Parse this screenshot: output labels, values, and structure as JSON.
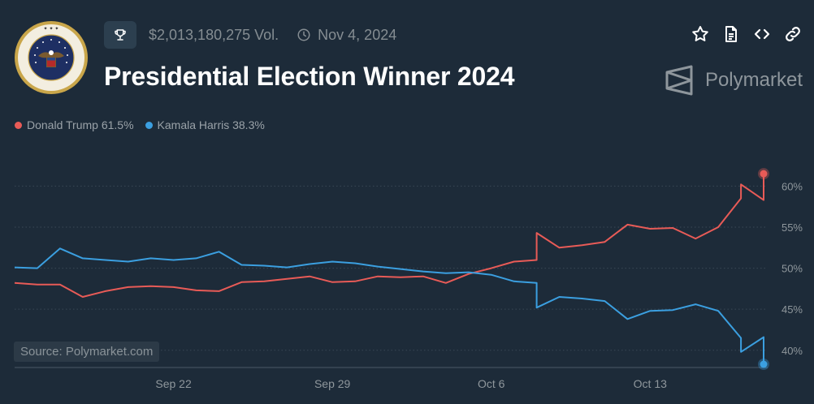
{
  "header": {
    "volume": "$2,013,180,275 Vol.",
    "date": "Nov 4, 2024",
    "title": "Presidential Election Winner 2024",
    "brand": "Polymarket"
  },
  "icons": {
    "trophy": "trophy-icon",
    "clock": "clock-icon",
    "actions": [
      "star-icon",
      "document-icon",
      "code-icon",
      "link-icon"
    ]
  },
  "legend": [
    {
      "label": "Donald Trump 61.5%",
      "color": "#e85b57"
    },
    {
      "label": "Kamala Harris 38.3%",
      "color": "#3b9fe0"
    }
  ],
  "source": "Source: Polymarket.com",
  "colors": {
    "background": "#1d2b39",
    "trump": "#e85b57",
    "harris": "#3b9fe0",
    "grid": "#3a4856",
    "muted": "#858d92"
  },
  "chart_data": {
    "type": "line",
    "x_ticks": [
      "Sep 22",
      "Sep 29",
      "Oct 6",
      "Oct 13"
    ],
    "y_ticks": [
      "40%",
      "45%",
      "50%",
      "55%",
      "60%"
    ],
    "ylim": [
      38.3,
      63
    ],
    "xlim": [
      "2024-09-15",
      "2024-10-18"
    ],
    "grid": "horizontal dotted",
    "legend_position": "top-left",
    "series": [
      {
        "name": "Donald Trump",
        "color": "#e85b57",
        "points": [
          [
            "2024-09-15",
            48.2
          ],
          [
            "2024-09-16",
            48.0
          ],
          [
            "2024-09-17",
            48.0
          ],
          [
            "2024-09-18",
            46.5
          ],
          [
            "2024-09-19",
            47.2
          ],
          [
            "2024-09-20",
            47.7
          ],
          [
            "2024-09-21",
            47.8
          ],
          [
            "2024-09-22",
            47.7
          ],
          [
            "2024-09-23",
            47.3
          ],
          [
            "2024-09-24",
            47.2
          ],
          [
            "2024-09-25",
            48.3
          ],
          [
            "2024-09-26",
            48.4
          ],
          [
            "2024-09-27",
            48.7
          ],
          [
            "2024-09-28",
            49.0
          ],
          [
            "2024-09-29",
            48.3
          ],
          [
            "2024-09-30",
            48.4
          ],
          [
            "2024-10-01",
            49.0
          ],
          [
            "2024-10-02",
            48.9
          ],
          [
            "2024-10-03",
            49.0
          ],
          [
            "2024-10-04",
            48.2
          ],
          [
            "2024-10-05",
            49.3
          ],
          [
            "2024-10-06",
            50.0
          ],
          [
            "2024-10-07",
            50.8
          ],
          [
            "2024-10-08",
            51.0
          ],
          [
            "2024-10-08",
            54.3
          ],
          [
            "2024-10-09",
            52.5
          ],
          [
            "2024-10-10",
            52.8
          ],
          [
            "2024-10-11",
            53.2
          ],
          [
            "2024-10-12",
            55.3
          ],
          [
            "2024-10-13",
            54.8
          ],
          [
            "2024-10-14",
            54.9
          ],
          [
            "2024-10-15",
            53.6
          ],
          [
            "2024-10-16",
            55.0
          ],
          [
            "2024-10-17",
            58.5
          ],
          [
            "2024-10-17",
            60.2
          ],
          [
            "2024-10-18",
            58.3
          ],
          [
            "2024-10-18",
            61.5
          ]
        ]
      },
      {
        "name": "Kamala Harris",
        "color": "#3b9fe0",
        "points": [
          [
            "2024-09-15",
            50.1
          ],
          [
            "2024-09-16",
            50.0
          ],
          [
            "2024-09-17",
            52.4
          ],
          [
            "2024-09-18",
            51.2
          ],
          [
            "2024-09-19",
            51.0
          ],
          [
            "2024-09-20",
            50.8
          ],
          [
            "2024-09-21",
            51.2
          ],
          [
            "2024-09-22",
            51.0
          ],
          [
            "2024-09-23",
            51.2
          ],
          [
            "2024-09-24",
            52.0
          ],
          [
            "2024-09-25",
            50.4
          ],
          [
            "2024-09-26",
            50.3
          ],
          [
            "2024-09-27",
            50.1
          ],
          [
            "2024-09-28",
            50.5
          ],
          [
            "2024-09-29",
            50.8
          ],
          [
            "2024-09-30",
            50.6
          ],
          [
            "2024-10-01",
            50.2
          ],
          [
            "2024-10-02",
            49.9
          ],
          [
            "2024-10-03",
            49.6
          ],
          [
            "2024-10-04",
            49.4
          ],
          [
            "2024-10-05",
            49.5
          ],
          [
            "2024-10-06",
            49.2
          ],
          [
            "2024-10-07",
            48.4
          ],
          [
            "2024-10-08",
            48.2
          ],
          [
            "2024-10-08",
            45.2
          ],
          [
            "2024-10-09",
            46.5
          ],
          [
            "2024-10-10",
            46.3
          ],
          [
            "2024-10-11",
            46.0
          ],
          [
            "2024-10-12",
            43.8
          ],
          [
            "2024-10-13",
            44.8
          ],
          [
            "2024-10-14",
            44.9
          ],
          [
            "2024-10-15",
            45.6
          ],
          [
            "2024-10-16",
            44.8
          ],
          [
            "2024-10-17",
            41.5
          ],
          [
            "2024-10-17",
            39.8
          ],
          [
            "2024-10-18",
            41.6
          ],
          [
            "2024-10-18",
            38.3
          ]
        ]
      }
    ]
  }
}
